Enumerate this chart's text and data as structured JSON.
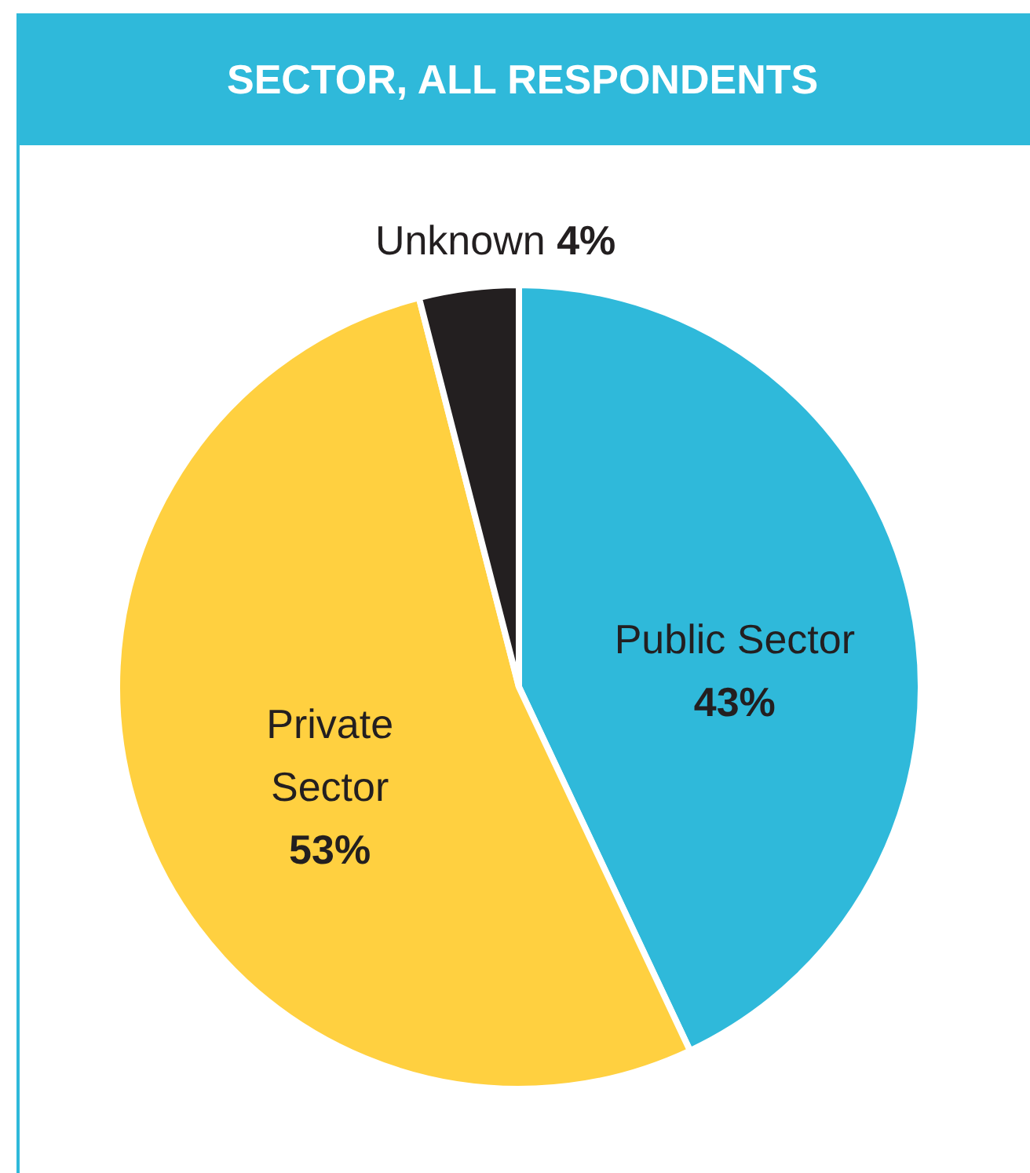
{
  "chart_data": {
    "type": "pie",
    "title": "SECTOR, ALL RESPONDENTS",
    "categories": [
      "Public Sector",
      "Private Sector",
      "Unknown"
    ],
    "values": [
      43,
      53,
      4
    ],
    "value_labels": [
      "43%",
      "53%",
      "4%"
    ],
    "colors": [
      "#2fb9da",
      "#ffd040",
      "#231f20"
    ]
  }
}
